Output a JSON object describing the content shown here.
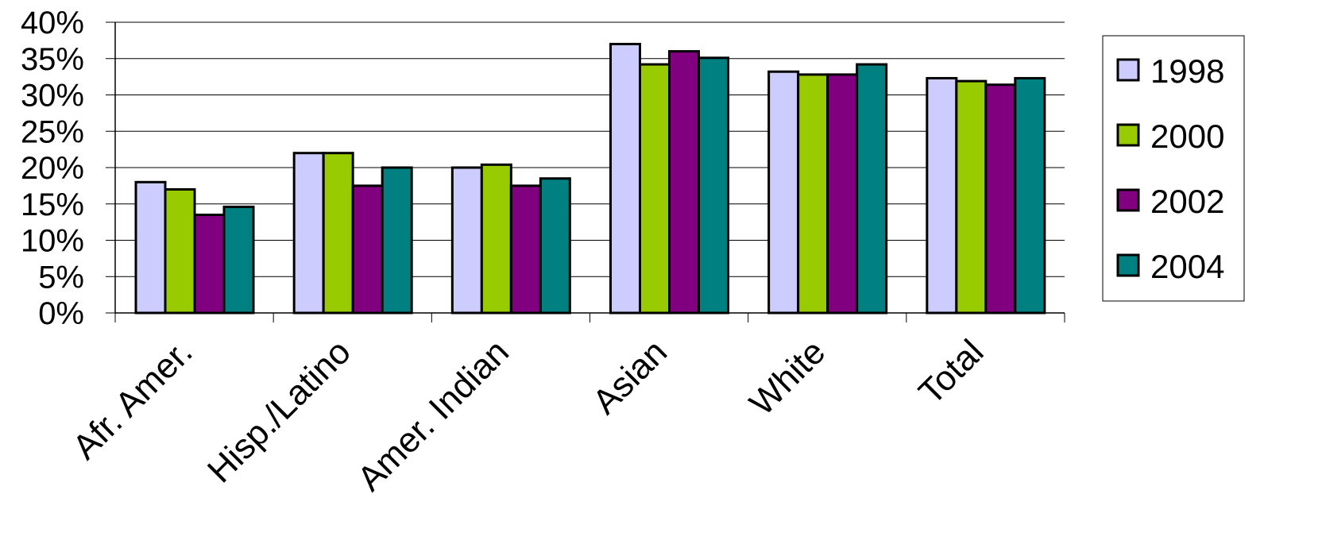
{
  "chart_data": {
    "type": "bar",
    "title": "",
    "xlabel": "",
    "ylabel": "",
    "ylim": [
      0,
      40
    ],
    "y_ticks": [
      "0%",
      "5%",
      "10%",
      "15%",
      "20%",
      "25%",
      "30%",
      "35%",
      "40%"
    ],
    "y_tick_values": [
      0,
      5,
      10,
      15,
      20,
      25,
      30,
      35,
      40
    ],
    "categories": [
      "Afr. Amer.",
      "Hisp./Latino",
      "Amer. Indian",
      "Asian",
      "White",
      "Total"
    ],
    "series": [
      {
        "name": "1998",
        "color": "#ccccff",
        "values": [
          18.0,
          22.0,
          20.0,
          37.0,
          33.2,
          32.3
        ]
      },
      {
        "name": "2000",
        "color": "#99cc00",
        "values": [
          17.0,
          22.0,
          20.4,
          34.2,
          32.8,
          31.9
        ]
      },
      {
        "name": "2002",
        "color": "#800080",
        "values": [
          13.5,
          17.5,
          17.5,
          36.0,
          32.8,
          31.4
        ]
      },
      {
        "name": "2004",
        "color": "#008080",
        "values": [
          14.6,
          20.0,
          18.5,
          35.1,
          34.2,
          32.3
        ]
      }
    ],
    "grid": true,
    "legend_position": "right"
  }
}
